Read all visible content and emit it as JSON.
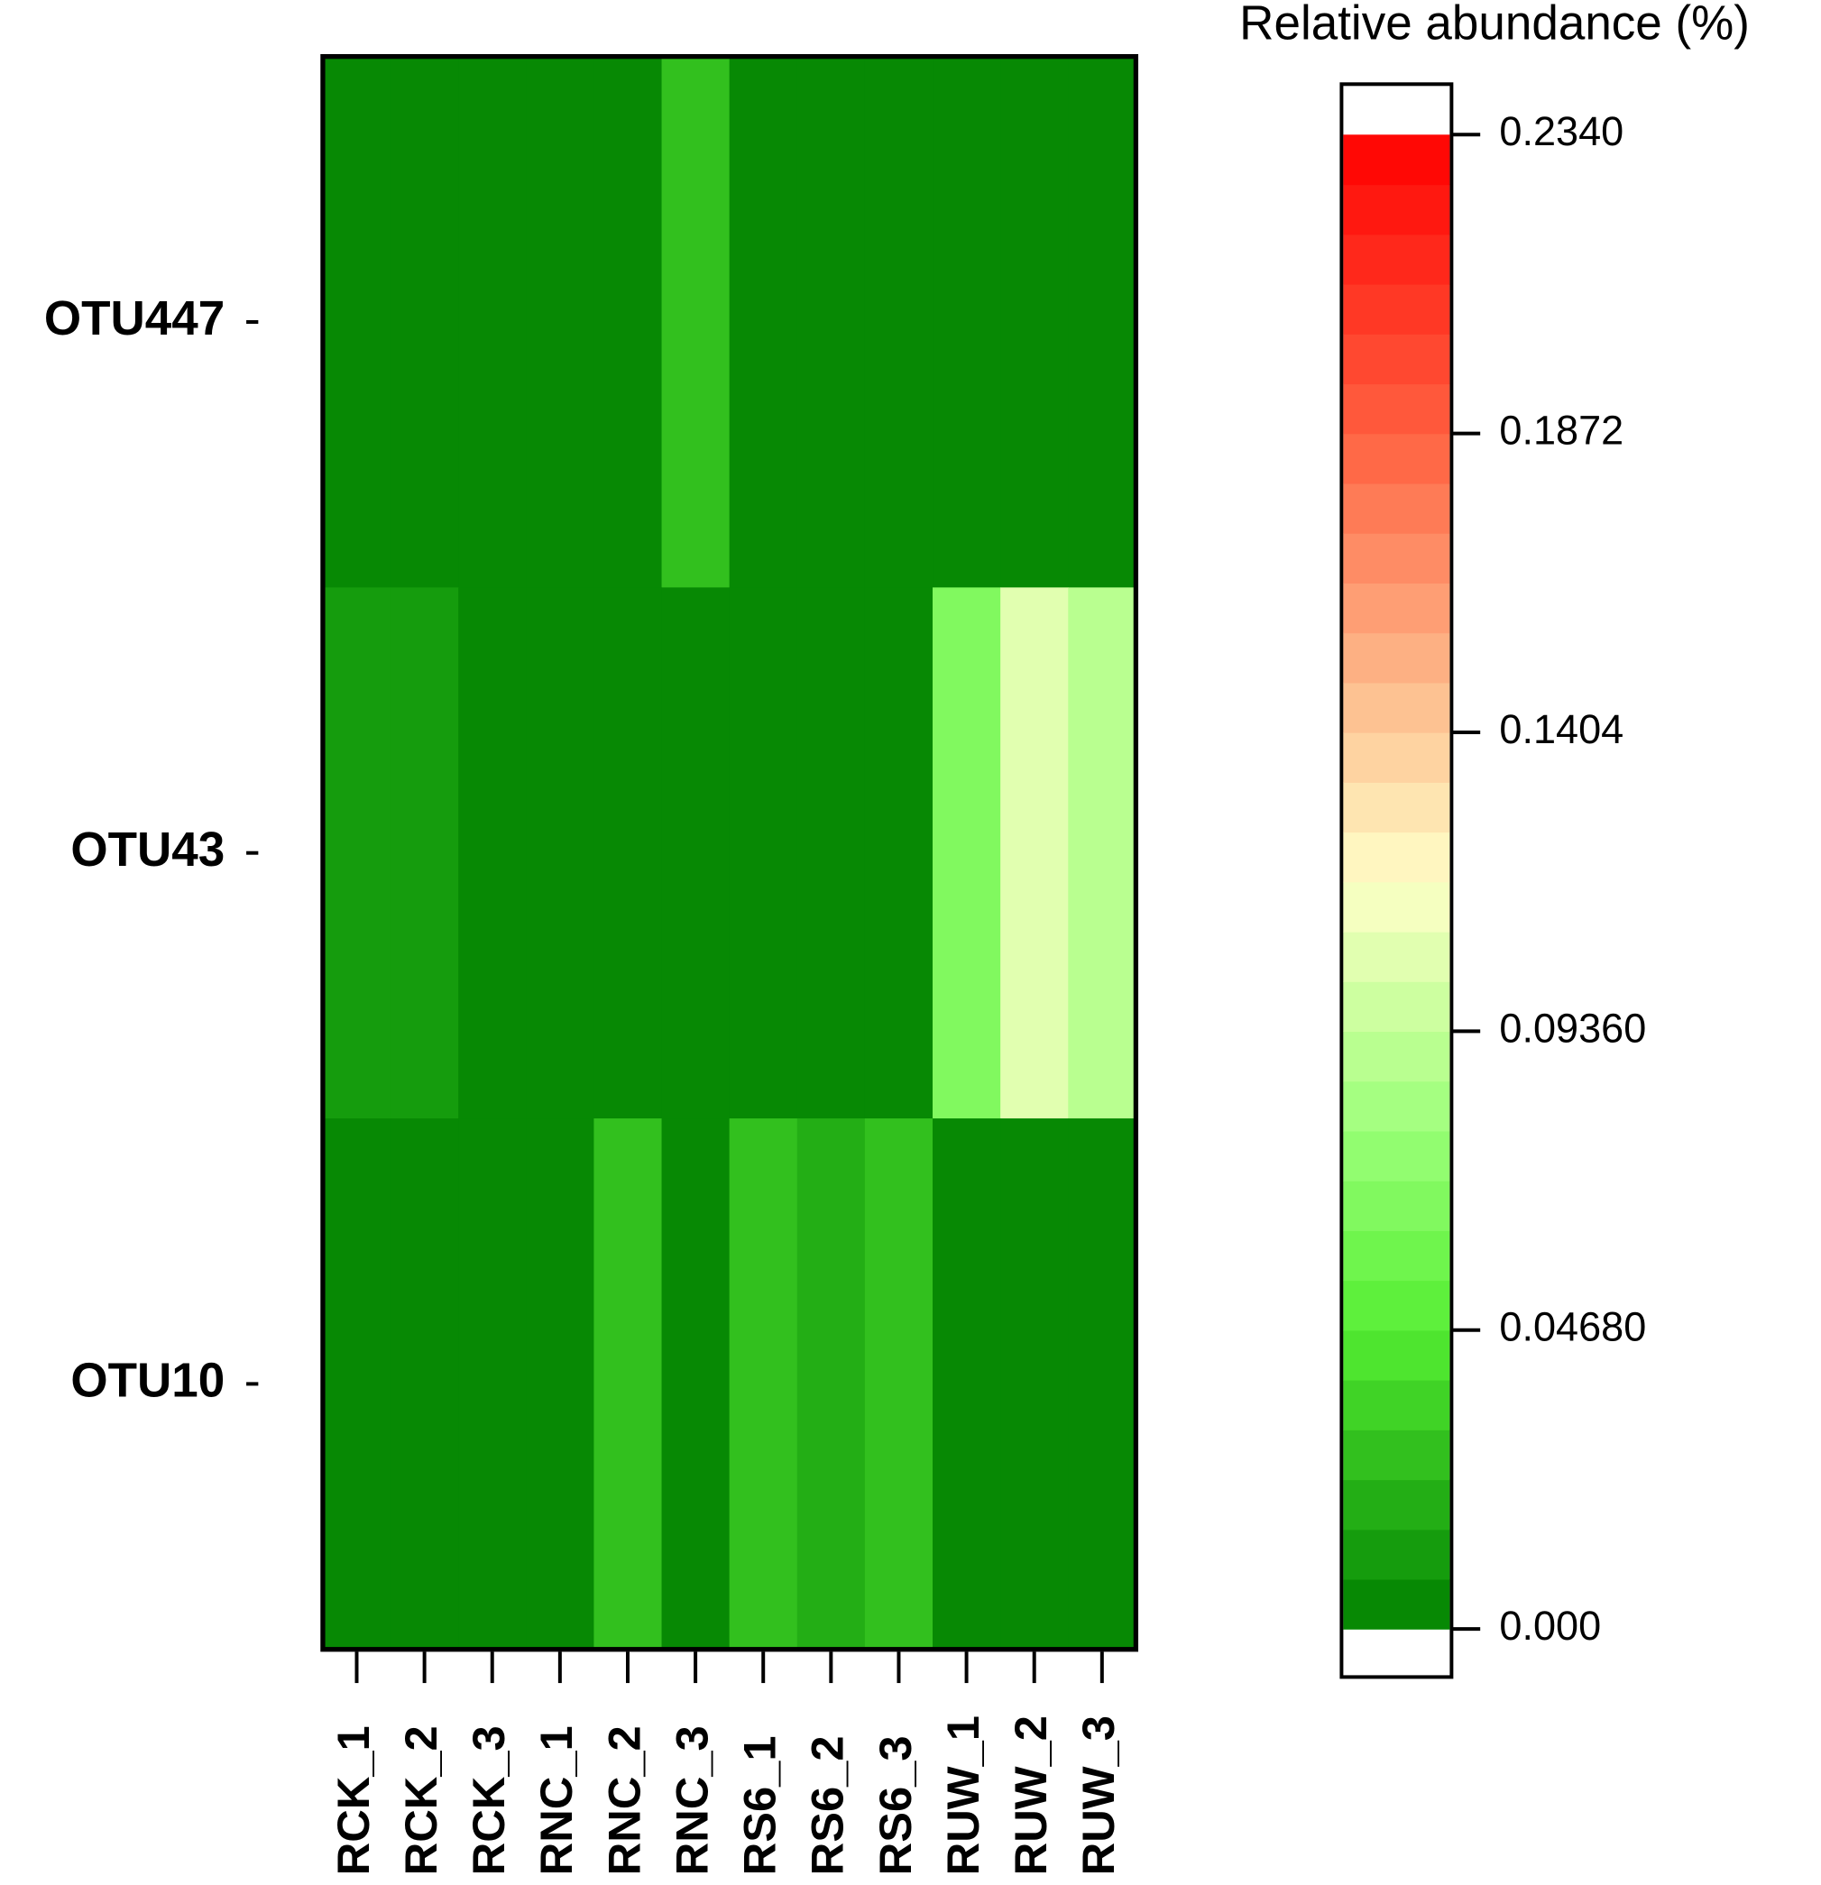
{
  "chart_data": {
    "type": "heatmap",
    "title": "Relative abundance (%)",
    "rows": [
      "OTU447",
      "OTU43",
      "OTU10"
    ],
    "columns": [
      "RCK_1",
      "RCK_2",
      "RCK_3",
      "RNC_1",
      "RNC_2",
      "RNC_3",
      "RS6_1",
      "RS6_2",
      "RS6_3",
      "RUW_1",
      "RUW_2",
      "RUW_3"
    ],
    "values": [
      [
        0,
        0,
        0,
        0,
        0,
        0.025,
        0,
        0,
        0,
        0,
        0,
        0
      ],
      [
        0.01,
        0.01,
        0,
        0,
        0,
        0,
        0,
        0,
        0,
        0.063,
        0.108,
        0.086
      ],
      [
        0,
        0,
        0,
        0,
        0.03,
        0,
        0.03,
        0.018,
        0.024,
        0,
        0,
        0
      ]
    ],
    "colorscale": [
      [
        0,
        "#008000"
      ],
      [
        0.2,
        "#55ee33"
      ],
      [
        0.33,
        "#99ff77"
      ],
      [
        0.5,
        "#ffffc8"
      ],
      [
        0.62,
        "#fdc090"
      ],
      [
        0.8,
        "#ff6040"
      ],
      [
        1,
        "#ff0000"
      ]
    ],
    "clim": [
      0,
      0.234
    ],
    "cticks": [
      {
        "value": 0,
        "label": "0.000"
      },
      {
        "value": 0.0468,
        "label": "0.04680"
      },
      {
        "value": 0.0936,
        "label": "0.09360"
      },
      0.1404,
      0.1872,
      {
        "value": 0.234,
        "label": "0.2340"
      }
    ]
  }
}
